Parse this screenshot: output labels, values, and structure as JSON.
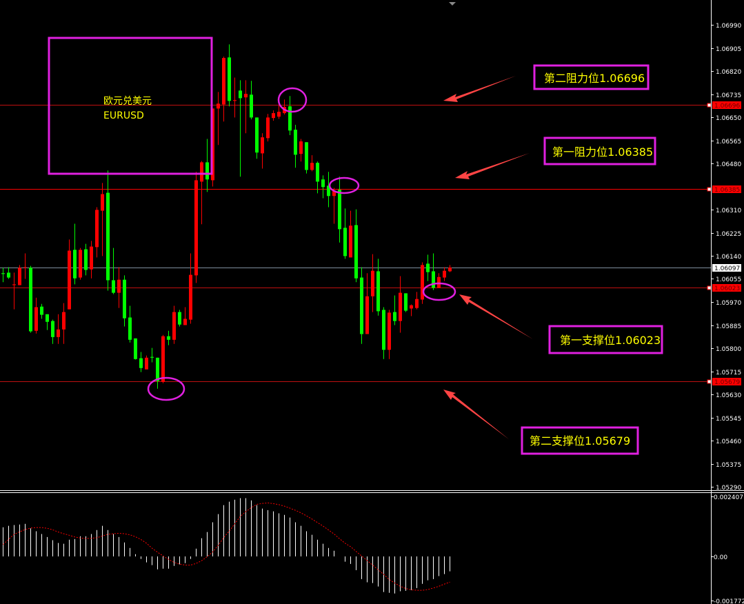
{
  "chart_data": {
    "type": "candlestick",
    "symbol_box": {
      "line1": "欧元兑美元",
      "line2": "EURUSD"
    },
    "price_axis": {
      "ylim": [
        1.0529,
        1.0699
      ],
      "ticks": [
        "1.06990",
        "1.06905",
        "1.06820",
        "1.06735",
        "1.06650",
        "1.06565",
        "1.06480",
        "1.06310",
        "1.06225",
        "1.06140",
        "1.06055",
        "1.05970",
        "1.05885",
        "1.05800",
        "1.05715",
        "1.05630",
        "1.05545",
        "1.05460",
        "1.05375",
        "1.05290"
      ]
    },
    "up_color": "#ff0000",
    "down_color": "#00ff00",
    "candles_ohlc": [
      [
        1.06076,
        1.06096,
        1.06043,
        1.06073
      ],
      [
        1.06078,
        1.06098,
        1.06055,
        1.0606
      ],
      [
        1.06032,
        1.06078,
        1.05943,
        1.06035
      ],
      [
        1.06032,
        1.06106,
        1.06032,
        1.06096
      ],
      [
        1.06096,
        1.06149,
        1.06055,
        1.06098
      ],
      [
        1.06096,
        1.06103,
        1.05857,
        1.05862
      ],
      [
        1.05864,
        1.05986,
        1.05854,
        1.05951
      ],
      [
        1.05953,
        1.05963,
        1.05908,
        1.05923
      ],
      [
        1.05925,
        1.05925,
        1.05867,
        1.05897
      ],
      [
        1.059,
        1.05905,
        1.05816,
        1.05841
      ],
      [
        1.05841,
        1.05925,
        1.05816,
        1.05869
      ],
      [
        1.05869,
        1.05966,
        1.05816,
        1.05933
      ],
      [
        1.05943,
        1.062,
        1.05943,
        1.06159
      ],
      [
        1.06162,
        1.06258,
        1.06035,
        1.06057
      ],
      [
        1.0606,
        1.06169,
        1.06052,
        1.06162
      ],
      [
        1.06164,
        1.06184,
        1.06068,
        1.06088
      ],
      [
        1.0609,
        1.06195,
        1.06057,
        1.06174
      ],
      [
        1.06172,
        1.06319,
        1.06134,
        1.06309
      ],
      [
        1.06306,
        1.06408,
        1.06139,
        1.06367
      ],
      [
        1.06372,
        1.06454,
        1.06012,
        1.0605
      ],
      [
        1.0605,
        1.06169,
        1.05999,
        1.06004
      ],
      [
        1.06004,
        1.06098,
        1.05948,
        1.06052
      ],
      [
        1.06052,
        1.06068,
        1.0588,
        1.0591
      ],
      [
        1.05913,
        1.05956,
        1.05821,
        1.05831
      ],
      [
        1.05836,
        1.05836,
        1.05758,
        1.0576
      ],
      [
        1.05763,
        1.05786,
        1.05712,
        1.05727
      ],
      [
        1.05722,
        1.05773,
        1.05722,
        1.05765
      ],
      [
        1.05768,
        1.05801,
        1.05748,
        1.05765
      ],
      [
        1.05765,
        1.05765,
        1.05651,
        1.05679
      ],
      [
        1.05676,
        1.05849,
        1.05671,
        1.05844
      ],
      [
        1.05844,
        1.05864,
        1.05811,
        1.05831
      ],
      [
        1.05831,
        1.05956,
        1.05816,
        1.05933
      ],
      [
        1.05933,
        1.05941,
        1.0588,
        1.05887
      ],
      [
        1.05885,
        1.05951,
        1.05885,
        1.05908
      ],
      [
        1.05905,
        1.06149,
        1.0589,
        1.0607
      ],
      [
        1.06068,
        1.06449,
        1.0604,
        1.06418
      ],
      [
        1.06413,
        1.06489,
        1.06256,
        1.06484
      ],
      [
        1.06484,
        1.0657,
        1.06375,
        1.06421
      ],
      [
        1.06418,
        1.06682,
        1.06395,
        1.06682
      ],
      [
        1.06682,
        1.06743,
        1.06548,
        1.067
      ],
      [
        1.06697,
        1.06873,
        1.06634,
        1.06868
      ],
      [
        1.0687,
        1.06918,
        1.0669,
        1.0671
      ],
      [
        1.0671,
        1.06796,
        1.06649,
        1.06713
      ],
      [
        1.06748,
        1.06786,
        1.06431,
        1.0672
      ],
      [
        1.06723,
        1.06786,
        1.06591,
        1.06736
      ],
      [
        1.06733,
        1.06784,
        1.06642,
        1.06649
      ],
      [
        1.06649,
        1.06649,
        1.06497,
        1.0652
      ],
      [
        1.06517,
        1.06591,
        1.06461,
        1.06576
      ],
      [
        1.06573,
        1.06662,
        1.06561,
        1.06649
      ],
      [
        1.06647,
        1.06675,
        1.06637,
        1.06665
      ],
      [
        1.06652,
        1.0671,
        1.06644,
        1.0667
      ],
      [
        1.06665,
        1.06715,
        1.0666,
        1.06688
      ],
      [
        1.0669,
        1.06728,
        1.06584,
        1.06601
      ],
      [
        1.06604,
        1.06622,
        1.06464,
        1.06512
      ],
      [
        1.06515,
        1.0657,
        1.06487,
        1.06561
      ],
      [
        1.06558,
        1.06558,
        1.06443,
        1.06456
      ],
      [
        1.06456,
        1.0651,
        1.06451,
        1.06482
      ],
      [
        1.06482,
        1.06487,
        1.0637,
        1.06413
      ],
      [
        1.06421,
        1.06436,
        1.06352,
        1.06393
      ],
      [
        1.06398,
        1.06449,
        1.06319,
        1.0636
      ],
      [
        1.0636,
        1.0639,
        1.06258,
        1.0638
      ],
      [
        1.06383,
        1.06431,
        1.06189,
        1.06238
      ],
      [
        1.06243,
        1.06314,
        1.06129,
        1.06139
      ],
      [
        1.06134,
        1.06306,
        1.06134,
        1.06251
      ],
      [
        1.06253,
        1.06311,
        1.06043,
        1.06057
      ],
      [
        1.0606,
        1.06098,
        1.05816,
        1.05852
      ],
      [
        1.05852,
        1.06076,
        1.05852,
        1.05991
      ],
      [
        1.05991,
        1.06146,
        1.05933,
        1.06085
      ],
      [
        1.06083,
        1.06129,
        1.0592,
        1.05936
      ],
      [
        1.05941,
        1.05951,
        1.0576,
        1.05794
      ],
      [
        1.05794,
        1.05941,
        1.0576,
        1.05931
      ],
      [
        1.05933,
        1.05994,
        1.05885,
        1.059
      ],
      [
        1.059,
        1.06065,
        1.05857,
        1.06004
      ],
      [
        1.06002,
        1.06002,
        1.05933,
        1.05938
      ],
      [
        1.05946,
        1.05961,
        1.05918,
        1.05958
      ],
      [
        1.05948,
        1.06007,
        1.05943,
        1.05981
      ],
      [
        1.05979,
        1.06116,
        1.05963,
        1.06106
      ],
      [
        1.06111,
        1.06144,
        1.06047,
        1.0608
      ],
      [
        1.06083,
        1.06149,
        1.06014,
        1.06022
      ],
      [
        1.06022,
        1.06076,
        1.06022,
        1.06062
      ],
      [
        1.0606,
        1.06098,
        1.06047,
        1.06085
      ],
      [
        1.06083,
        1.06106,
        1.0608,
        1.06097
      ]
    ],
    "levels": [
      {
        "price": "1.06696",
        "color": "#c01010",
        "tag": "1.06696"
      },
      {
        "price": "1.06385",
        "color": "#ff0000",
        "tag": "1.06385"
      },
      {
        "price": "1.06097",
        "color": "#8090a0",
        "tag": "1.06097",
        "current": true
      },
      {
        "price": "1.06023",
        "color": "#c01010",
        "tag": "1.06023"
      },
      {
        "price": "1.05679",
        "color": "#c01010",
        "tag": "1.05679"
      }
    ],
    "annotations": [
      {
        "text": "第二阻力位1.06696",
        "target_price": 1.06696
      },
      {
        "text": "第一阻力位1.06385",
        "target_price": 1.06385
      },
      {
        "text": "第一支撑位1.06023",
        "target_price": 1.06023
      },
      {
        "text": "第二支撑位1.05679",
        "target_price": 1.05679
      }
    ],
    "annotation_color": "#e020e0",
    "annotation_text_color": "#ffff00",
    "arrow_color": "#ff4444",
    "macd": {
      "ylim": [
        -0.001772,
        0.002407
      ],
      "ticks": [
        "0.002407",
        "0.00",
        "-0.001772"
      ],
      "histogram": [
        0.00117,
        0.00123,
        0.00126,
        0.00128,
        0.00131,
        0.00113,
        0.00101,
        0.0009,
        0.00078,
        0.00065,
        0.00054,
        0.00051,
        0.00067,
        0.0007,
        0.00081,
        0.00081,
        0.0009,
        0.00106,
        0.00123,
        0.00106,
        0.0009,
        0.00078,
        0.00056,
        0.00034,
        9e-05,
        -0.0001,
        -0.00024,
        -0.00035,
        -0.00052,
        -0.00049,
        -0.00049,
        -0.00038,
        -0.00032,
        -0.00027,
        -0.0001,
        0.00031,
        0.00073,
        0.00098,
        0.00137,
        0.0017,
        0.00206,
        0.0022,
        0.00228,
        0.00234,
        0.00234,
        0.00225,
        0.00206,
        0.00192,
        0.00186,
        0.00181,
        0.00173,
        0.00167,
        0.00156,
        0.00137,
        0.00123,
        0.00101,
        0.00087,
        0.00067,
        0.00051,
        0.00034,
        0.00023,
        0.0,
        -0.00021,
        -0.0003,
        -0.00055,
        -0.00091,
        -0.00104,
        -0.00107,
        -0.00121,
        -0.00143,
        -0.00146,
        -0.00149,
        -0.0014,
        -0.00138,
        -0.00135,
        -0.00127,
        -0.0011,
        -0.00096,
        -0.00091,
        -0.00079,
        -0.00071,
        -0.0006
      ],
      "signal": [
        0.00048,
        0.00069,
        0.00089,
        0.00099,
        0.00108,
        0.00114,
        0.00116,
        0.00116,
        0.00113,
        0.00107,
        0.00098,
        0.00091,
        0.00085,
        0.00078,
        0.00074,
        0.00072,
        0.00073,
        0.00075,
        0.00082,
        0.00089,
        0.00091,
        0.00093,
        0.00091,
        0.00087,
        0.00079,
        0.00068,
        0.00053,
        0.00033,
        0.00017,
        2e-05,
        -0.00012,
        -0.00024,
        -0.00031,
        -0.00035,
        -0.00035,
        -0.00028,
        -0.00017,
        -1e-05,
        0.00018,
        0.00045,
        0.00076,
        0.00102,
        0.00131,
        0.00161,
        0.0018,
        0.00196,
        0.00209,
        0.00213,
        0.00215,
        0.00212,
        0.00208,
        0.00202,
        0.00194,
        0.00185,
        0.00175,
        0.00163,
        0.0015,
        0.00136,
        0.00122,
        0.00106,
        0.0009,
        0.00071,
        0.00053,
        0.00039,
        0.0002,
        2e-05,
        -0.00017,
        -0.00035,
        -0.00054,
        -0.00072,
        -0.00093,
        -0.00107,
        -0.0012,
        -0.00129,
        -0.00134,
        -0.00136,
        -0.00136,
        -0.00133,
        -0.00127,
        -0.0012,
        -0.00111,
        -0.00103
      ],
      "histogram_color": "#ffffff",
      "signal_color": "#ff0000"
    }
  }
}
